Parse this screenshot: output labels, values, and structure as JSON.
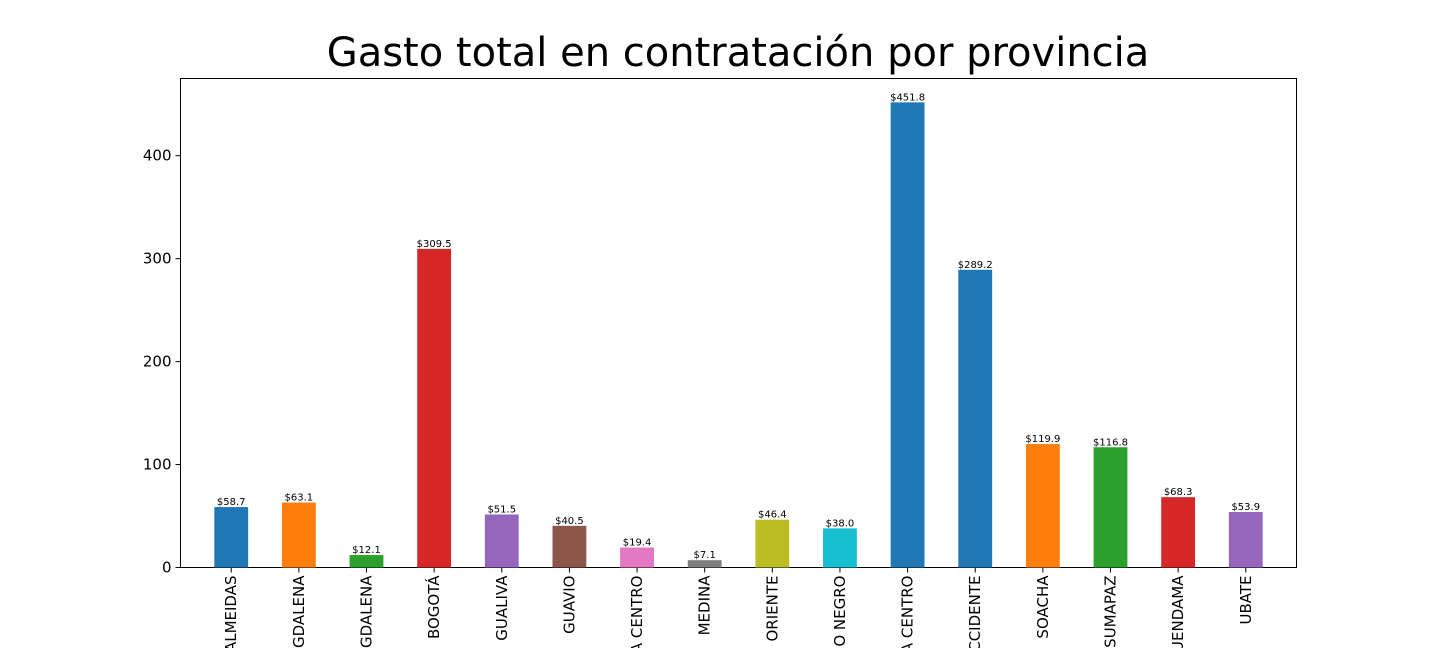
{
  "chart_data": {
    "type": "bar",
    "title": "Gasto total en contratación por provincia",
    "xlabel": "",
    "ylabel": "",
    "ylim": [
      0,
      475
    ],
    "yticks": [
      0,
      100,
      200,
      300,
      400
    ],
    "grid": false,
    "legend": "none",
    "categories": [
      "ALMEIDAS",
      "GDALENA",
      "GDALENA",
      "BOGOTÁ",
      "GUALIVA",
      "GUAVIO",
      "A CENTRO",
      "MEDINA",
      "ORIENTE",
      "O NEGRO",
      "A CENTRO",
      "CCIDENTE",
      "SOACHA",
      "SUMAPAZ",
      "UENDAMA",
      "UBATE"
    ],
    "values": [
      58.7,
      63.1,
      12.1,
      309.5,
      51.5,
      40.5,
      19.4,
      7.1,
      46.4,
      38.0,
      451.8,
      289.2,
      119.9,
      116.8,
      68.3,
      53.9
    ],
    "value_labels": [
      "$58.7",
      "$63.1",
      "$12.1",
      "$309.5",
      "$51.5",
      "$40.5",
      "$19.4",
      "$7.1",
      "$46.4",
      "$38.0",
      "$451.8",
      "$289.2",
      "$119.9",
      "$116.8",
      "$68.3",
      "$53.9"
    ],
    "colors": [
      "#1f77b4",
      "#ff7f0e",
      "#2ca02c",
      "#d62728",
      "#9467bd",
      "#8c564b",
      "#e377c2",
      "#7f7f7f",
      "#bcbd22",
      "#17becf",
      "#1f77b4",
      "#1f77b4",
      "#ff7f0e",
      "#2ca02c",
      "#d62728",
      "#9467bd"
    ]
  }
}
